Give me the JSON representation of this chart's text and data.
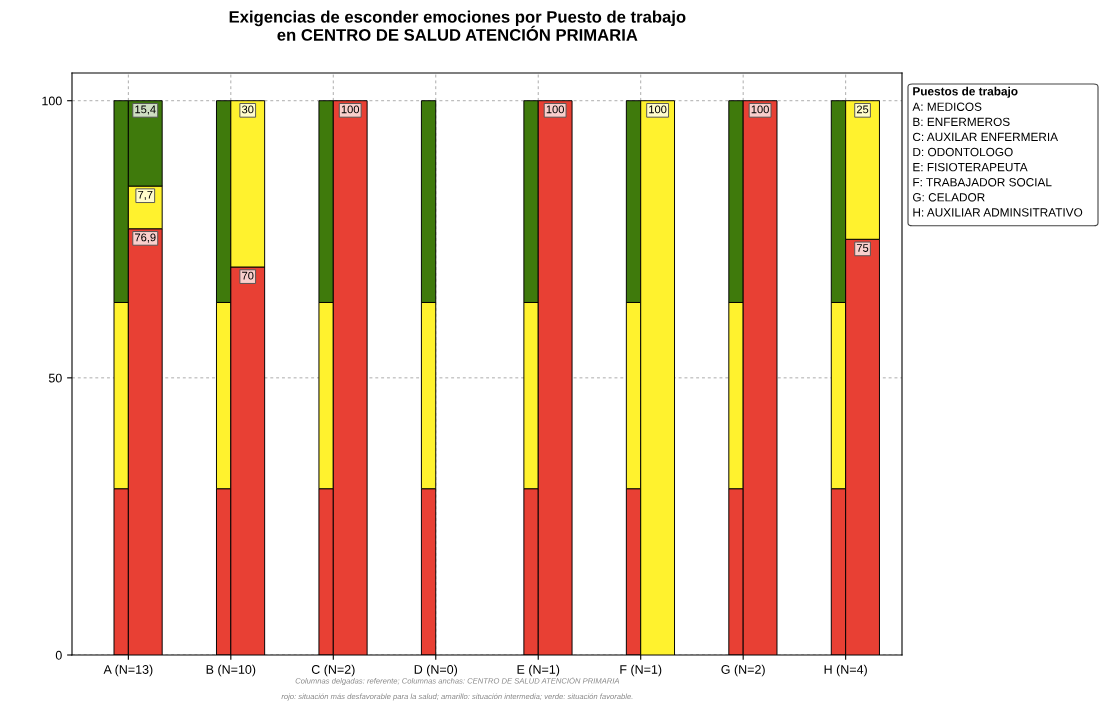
{
  "chart_data": [
    {
      "type": "bar",
      "stacked": true,
      "title": "Exigencias de esconder emociones por Puesto de trabajo\nen CENTRO DE SALUD ATENCIÓN PRIMARIA",
      "categories": [
        "A (N=13)",
        "B (N=10)",
        "C (N=2)",
        "D (N=0)",
        "E (N=1)",
        "F (N=1)",
        "G (N=2)",
        "H (N=4)"
      ],
      "series": [
        {
          "color": "#e84034",
          "values": [
            30,
            30,
            30,
            30,
            30,
            30,
            30,
            30
          ]
        },
        {
          "color": "#fff22e",
          "values": [
            33.6,
            33.6,
            33.6,
            33.6,
            33.6,
            33.6,
            33.6,
            33.6
          ]
        },
        {
          "color": "#3f7a0c",
          "values": [
            36.4,
            36.4,
            36.4,
            36.4,
            36.4,
            36.4,
            36.4,
            36.4
          ]
        }
      ],
      "ylim": [
        0,
        105
      ],
      "yticks": [
        0,
        50,
        100
      ],
      "grid": true,
      "legend_title": "Puestos de trabajo",
      "annotations": [
        "A: MEDICOS",
        "B: ENFERMEROS",
        "C: AUXILAR ENFERMERIA",
        "D: ODONTOLOGO",
        "E: FISIOTERAPEUTA",
        "F: TRABAJADOR SOCIAL",
        "G: CELADOR",
        "H: AUXILIAR ADMINSITRATIVO",
        "Columnas delgadas: referente; Columnas anchas: CENTRO DE SALUD ATENCIÓN PRIMARIA",
        "rojo: situación más desfavorable para la salud; amarillo: situación intermedia; verde: situación favorable."
      ]
    },
    {
      "type": "bar",
      "stacked": true,
      "categories": [
        null,
        null,
        null,
        null,
        null,
        null,
        null,
        null
      ],
      "series": [
        {
          "color": "#e84034",
          "values": [
            76.9,
            70,
            100,
            null,
            100,
            0,
            100,
            75
          ],
          "value_labels": [
            "76,9",
            "70",
            "100",
            null,
            "100",
            null,
            "100",
            "75"
          ]
        },
        {
          "color": "#fff22e",
          "values": [
            7.7,
            30,
            0,
            null,
            0,
            100,
            0,
            25
          ],
          "value_labels": [
            "7,7",
            "30",
            null,
            null,
            null,
            "100",
            null,
            "25"
          ]
        },
        {
          "color": "#3f7a0c",
          "values": [
            15.4,
            0,
            0,
            null,
            0,
            0,
            0,
            0
          ],
          "value_labels": [
            "15,4",
            null,
            null,
            null,
            null,
            null,
            null,
            null
          ]
        }
      ],
      "ylim": [
        0,
        105
      ],
      "tick_labels": false
    }
  ]
}
